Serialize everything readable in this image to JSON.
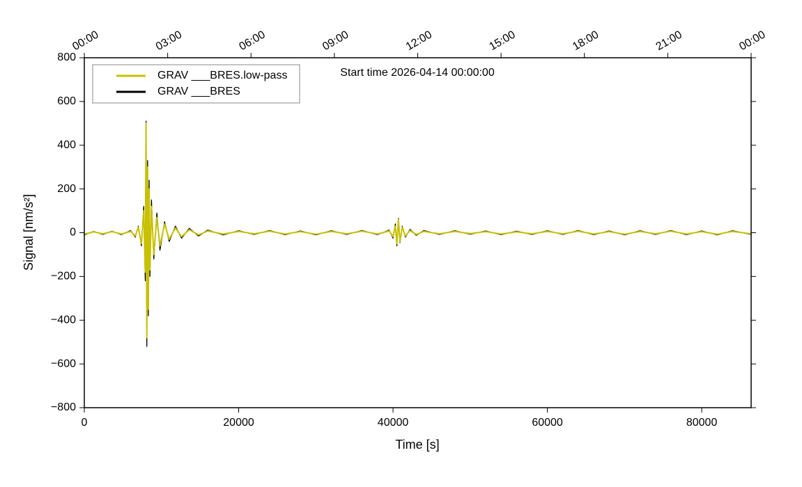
{
  "chart_data": {
    "type": "line",
    "annotation": "Start time 2026-04-14 00:00:00",
    "xlabel": "Time [s]",
    "ylabel": "Signal [nm/s²]",
    "xlim": [
      0,
      86400
    ],
    "xticks": [
      0,
      20000,
      40000,
      60000,
      80000
    ],
    "x2ticks": [
      {
        "value": 0,
        "label": "00:00"
      },
      {
        "value": 10800,
        "label": "03:00"
      },
      {
        "value": 21600,
        "label": "06:00"
      },
      {
        "value": 32400,
        "label": "09:00"
      },
      {
        "value": 43200,
        "label": "12:00"
      },
      {
        "value": 54000,
        "label": "15:00"
      },
      {
        "value": 64800,
        "label": "18:00"
      },
      {
        "value": 75600,
        "label": "21:00"
      },
      {
        "value": 86400,
        "label": "00:00"
      }
    ],
    "ylim": [
      -800,
      800
    ],
    "yticks": [
      {
        "value": -800,
        "label": "−800"
      },
      {
        "value": -600,
        "label": "−600"
      },
      {
        "value": -400,
        "label": "−400"
      },
      {
        "value": -200,
        "label": "−200"
      },
      0,
      200,
      400,
      600,
      800
    ],
    "legend": "upper left",
    "x": [
      0,
      1200,
      2400,
      3600,
      4800,
      6000,
      6600,
      7000,
      7400,
      7700,
      7900,
      8000,
      8100,
      8200,
      8300,
      8400,
      8500,
      8700,
      9000,
      9400,
      9800,
      10400,
      11000,
      11800,
      12600,
      13600,
      14800,
      16000,
      18000,
      20000,
      22000,
      24000,
      26000,
      28000,
      30000,
      32000,
      34000,
      36000,
      38000,
      39500,
      40000,
      40300,
      40500,
      40700,
      40900,
      41200,
      41600,
      42200,
      43000,
      44000,
      46000,
      48000,
      50000,
      52000,
      54000,
      56000,
      58000,
      60000,
      62000,
      64000,
      66000,
      68000,
      70000,
      72000,
      74000,
      76000,
      78000,
      80000,
      82000,
      84000,
      86400
    ],
    "series": [
      {
        "name": "GRAV ___BRES.low-pass",
        "color": "#c8c000",
        "values": [
          -6,
          4,
          -5,
          5,
          -6,
          6,
          -15,
          25,
          -50,
          100,
          -180,
          500,
          -480,
          300,
          -350,
          200,
          -170,
          120,
          -100,
          70,
          -60,
          40,
          -30,
          22,
          -18,
          14,
          -10,
          8,
          -6,
          6,
          -5,
          7,
          -6,
          5,
          -7,
          6,
          -5,
          7,
          -6,
          8,
          -18,
          30,
          -50,
          60,
          -40,
          25,
          -15,
          10,
          -8,
          6,
          -5,
          6,
          -4,
          5,
          -6,
          4,
          -5,
          6,
          -5,
          7,
          -6,
          5,
          -7,
          6,
          -5,
          7,
          -6,
          5,
          -7,
          6,
          -5
        ]
      },
      {
        "name": "GRAV ___BRES",
        "color": "#000000",
        "values": [
          -10,
          6,
          -8,
          7,
          -9,
          10,
          -20,
          30,
          -60,
          120,
          -220,
          510,
          -520,
          330,
          -380,
          240,
          -200,
          150,
          -120,
          90,
          -80,
          50,
          -40,
          30,
          -25,
          20,
          -15,
          12,
          -10,
          9,
          -8,
          10,
          -9,
          8,
          -10,
          9,
          -8,
          10,
          -9,
          12,
          -25,
          40,
          -60,
          65,
          -45,
          30,
          -20,
          15,
          -12,
          10,
          -8,
          9,
          -7,
          8,
          -9,
          7,
          -8,
          9,
          -8,
          10,
          -9,
          8,
          -10,
          9,
          -8,
          10,
          -9,
          8,
          -10,
          9,
          -8
        ]
      }
    ]
  }
}
